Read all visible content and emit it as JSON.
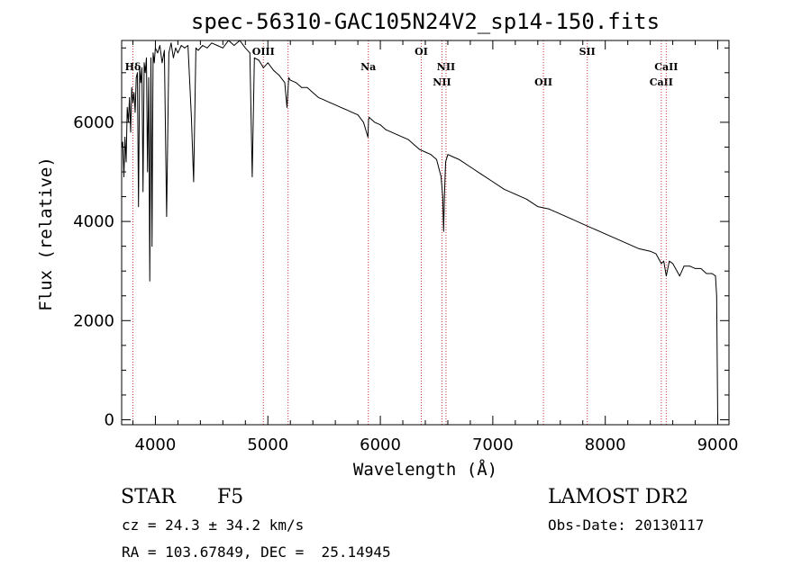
{
  "chart_data": {
    "type": "line",
    "title": "spec-56310-GAC105N24V2_sp14-150.fits",
    "xlabel": "Wavelength (Å)",
    "ylabel": "Flux (relative)",
    "xlim": [
      3700,
      9100
    ],
    "ylim": [
      -100,
      7650
    ],
    "x_ticks": [
      4000,
      5000,
      6000,
      7000,
      8000,
      9000
    ],
    "y_ticks": [
      0,
      2000,
      4000,
      6000
    ],
    "grid": false,
    "series": [
      {
        "x": [
          3700,
          3710,
          3720,
          3730,
          3740,
          3750,
          3760,
          3770,
          3780,
          3790,
          3800,
          3810,
          3820,
          3830,
          3840,
          3850,
          3860,
          3870,
          3880,
          3890,
          3900,
          3910,
          3920,
          3930,
          3940,
          3950,
          3960,
          3970,
          3980,
          3990,
          4000,
          4020,
          4040,
          4060,
          4080,
          4100,
          4120,
          4140,
          4160,
          4180,
          4200,
          4230,
          4260,
          4290,
          4320,
          4340,
          4360,
          4380,
          4420,
          4460,
          4500,
          4550,
          4600,
          4650,
          4700,
          4750,
          4800,
          4840,
          4861,
          4880,
          4920,
          4960,
          5000,
          5050,
          5100,
          5150,
          5170,
          5185,
          5200,
          5250,
          5300,
          5350,
          5400,
          5450,
          5500,
          5550,
          5600,
          5650,
          5700,
          5750,
          5800,
          5850,
          5890,
          5895,
          5900,
          5950,
          6000,
          6050,
          6100,
          6150,
          6200,
          6250,
          6300,
          6350,
          6400,
          6450,
          6500,
          6540,
          6555,
          6563,
          6570,
          6580,
          6600,
          6650,
          6700,
          6800,
          6900,
          7000,
          7100,
          7200,
          7300,
          7400,
          7500,
          7600,
          7700,
          7800,
          7900,
          8000,
          8100,
          8200,
          8300,
          8400,
          8450,
          8498,
          8520,
          8542,
          8570,
          8600,
          8662,
          8700,
          8750,
          8800,
          8850,
          8900,
          8950,
          8980,
          8990,
          9000
        ],
        "y": [
          5500,
          5600,
          4900,
          5700,
          5200,
          6300,
          6000,
          6500,
          5800,
          6700,
          6400,
          6600,
          6200,
          6900,
          7000,
          4300,
          7100,
          6800,
          7100,
          4600,
          7200,
          7000,
          7300,
          5000,
          6900,
          2800,
          7300,
          3500,
          7400,
          7200,
          7500,
          7400,
          7550,
          7200,
          7450,
          4100,
          7400,
          7600,
          7300,
          7500,
          7400,
          7550,
          7500,
          7550,
          6100,
          4800,
          7500,
          7450,
          7550,
          7500,
          7600,
          7550,
          7500,
          7650,
          7550,
          7650,
          7500,
          7400,
          4900,
          7300,
          7250,
          7100,
          7200,
          7050,
          6950,
          6800,
          6300,
          6900,
          6850,
          6800,
          6700,
          6700,
          6600,
          6500,
          6450,
          6400,
          6350,
          6300,
          6250,
          6200,
          6150,
          6000,
          5700,
          6050,
          6100,
          6000,
          5950,
          5850,
          5800,
          5750,
          5700,
          5650,
          5550,
          5450,
          5400,
          5350,
          5250,
          4900,
          4500,
          3800,
          4500,
          5200,
          5350,
          5300,
          5250,
          5100,
          4950,
          4800,
          4650,
          4550,
          4450,
          4300,
          4250,
          4150,
          4050,
          3950,
          3850,
          3750,
          3650,
          3550,
          3450,
          3400,
          3350,
          3150,
          3200,
          2900,
          3200,
          3150,
          2900,
          3100,
          3100,
          3050,
          3050,
          2950,
          2950,
          2900,
          2500,
          0
        ]
      }
    ],
    "emission_lines": [
      {
        "label": "Hδ",
        "x": 3800,
        "row": "upper2"
      },
      {
        "label": "OIII",
        "x": 4960,
        "row": "upper"
      },
      {
        "label": "",
        "x": 5180,
        "row": "upper"
      },
      {
        "label": "Na",
        "x": 5893,
        "row": "upper2"
      },
      {
        "label": "OI",
        "x": 6364,
        "row": "upper"
      },
      {
        "label": "NII",
        "x": 6548,
        "row": "lower"
      },
      {
        "label": "NII",
        "x": 6584,
        "row": "upper2"
      },
      {
        "label": "OII",
        "x": 7450,
        "row": "lower"
      },
      {
        "label": "SII",
        "x": 7840,
        "row": "upper"
      },
      {
        "label": "CaII",
        "x": 8498,
        "row": "lower"
      },
      {
        "label": "CaII",
        "x": 8542,
        "row": "upper2"
      }
    ],
    "line_color": "#cc3333"
  },
  "info": {
    "class": "STAR",
    "subclass": "F5",
    "survey": "LAMOST DR2",
    "cz": "cz = 24.3 ± 34.2 km/s",
    "obs_date": "Obs-Date: 20130117",
    "radec": "RA = 103.67849, DEC =  25.14945"
  }
}
